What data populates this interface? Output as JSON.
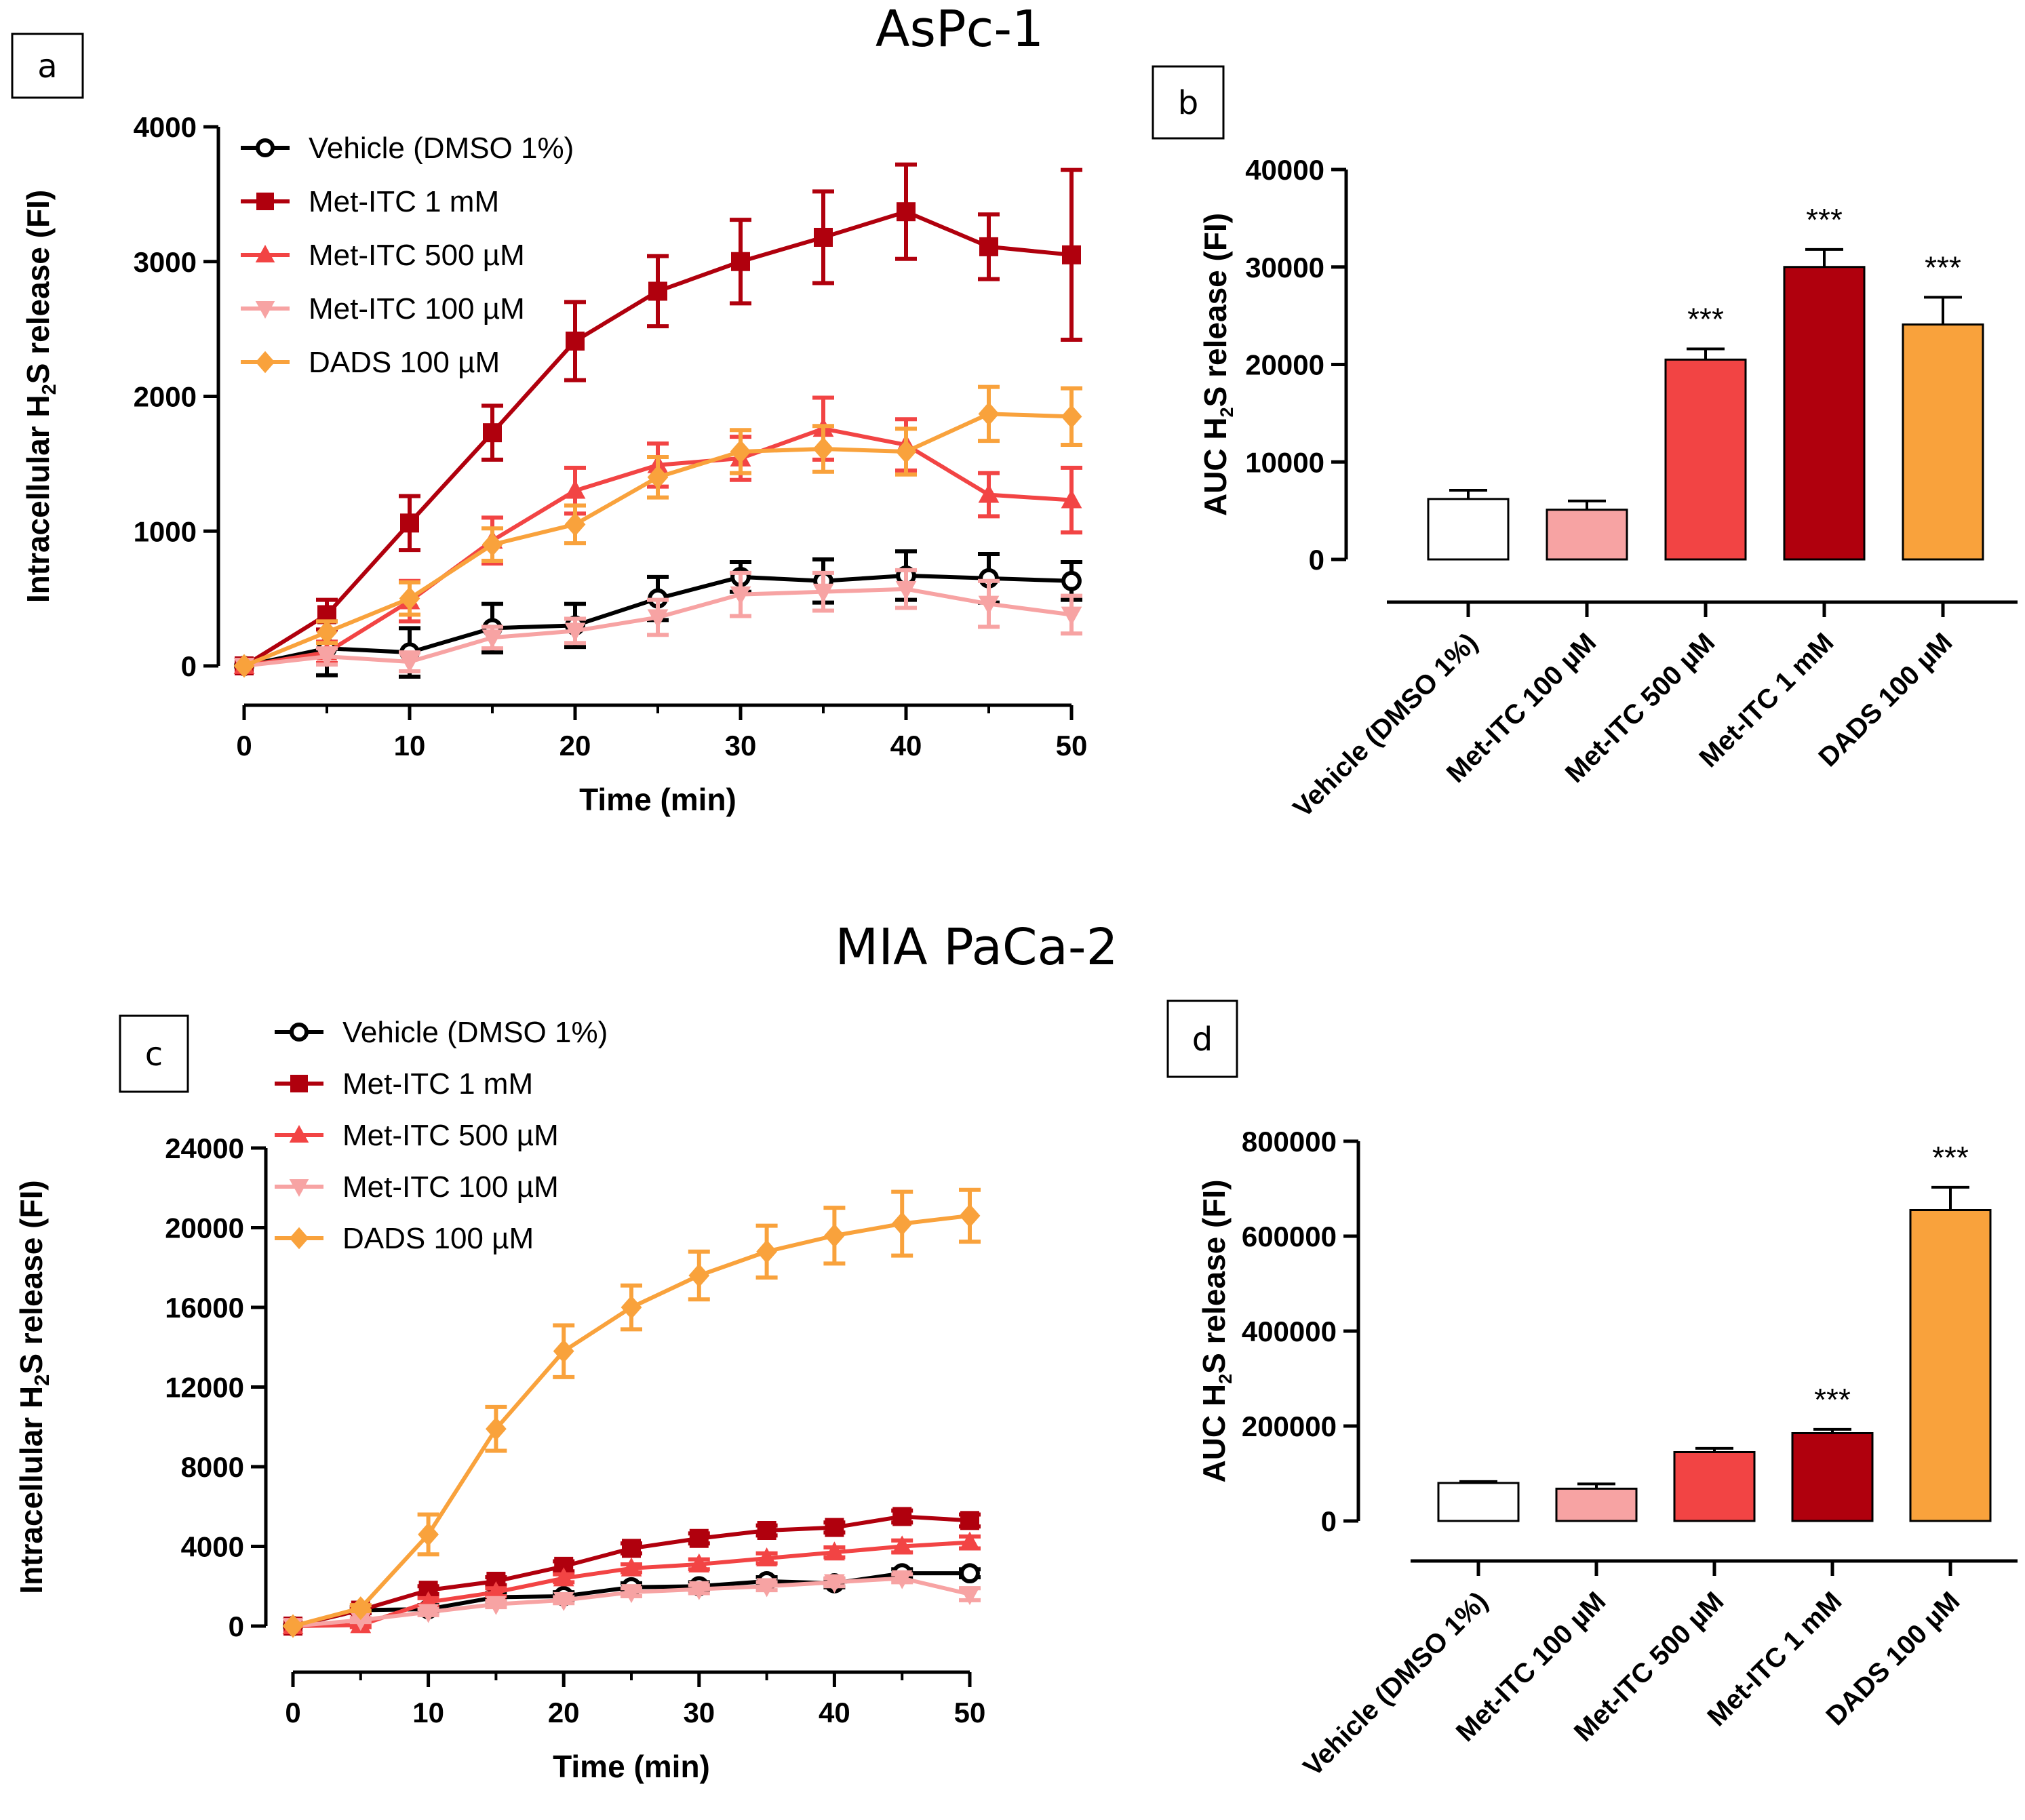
{
  "titles": {
    "top": "AsPc-1",
    "bottom": "MIA PaCa-2"
  },
  "colors": {
    "Vehicle (DMSO 1%)": "#000000",
    "Met-ITC 1 mM": "#b0000d",
    "Met-ITC 500 µM": "#f24444",
    "Met-ITC 100 µM": "#f7a3a3",
    "DADS 100 µM": "#f9a23c"
  },
  "chart_data": [
    {
      "id": "a",
      "label": "a",
      "type": "line",
      "x": [
        0,
        5,
        10,
        15,
        20,
        25,
        30,
        35,
        40,
        45,
        50
      ],
      "xlabel": "Time (min)",
      "ylabel": "Intracellular H2S release (FI)",
      "xlim": [
        0,
        50
      ],
      "ylim": [
        0,
        4000
      ],
      "xticks": [
        0,
        10,
        20,
        30,
        40,
        50
      ],
      "yticks": [
        0,
        1000,
        2000,
        3000,
        4000
      ],
      "series": [
        {
          "name": "Vehicle (DMSO 1%)",
          "marker": "circle",
          "values": [
            0,
            130,
            100,
            280,
            300,
            500,
            660,
            630,
            670,
            650,
            630
          ],
          "errors": [
            0,
            200,
            180,
            180,
            160,
            160,
            110,
            160,
            180,
            180,
            140
          ]
        },
        {
          "name": "Met-ITC 1 mM",
          "marker": "square",
          "values": [
            0,
            380,
            1060,
            1730,
            2410,
            2780,
            3000,
            3180,
            3370,
            3110,
            3050
          ],
          "errors": [
            0,
            110,
            200,
            200,
            290,
            260,
            310,
            340,
            350,
            240,
            630
          ]
        },
        {
          "name": "Met-ITC 500 µM",
          "marker": "triangle",
          "values": [
            0,
            100,
            480,
            930,
            1300,
            1490,
            1540,
            1760,
            1640,
            1270,
            1230
          ],
          "errors": [
            0,
            80,
            150,
            170,
            170,
            160,
            160,
            230,
            190,
            160,
            240
          ]
        },
        {
          "name": "Met-ITC 100 µM",
          "marker": "triangle-down",
          "values": [
            0,
            70,
            30,
            210,
            260,
            360,
            530,
            550,
            570,
            460,
            380
          ],
          "errors": [
            0,
            60,
            70,
            80,
            90,
            130,
            160,
            140,
            140,
            170,
            140
          ]
        },
        {
          "name": "DADS 100 µM",
          "marker": "diamond",
          "values": [
            0,
            250,
            500,
            900,
            1050,
            1400,
            1590,
            1610,
            1590,
            1870,
            1850
          ],
          "errors": [
            0,
            80,
            120,
            120,
            140,
            150,
            160,
            170,
            170,
            200,
            210
          ]
        }
      ]
    },
    {
      "id": "b",
      "label": "b",
      "type": "bar",
      "categories": [
        "Vehicle (DMSO 1%)",
        "Met-ITC 100 µM",
        "Met-ITC 500 µM",
        "Met-ITC 1 mM",
        "DADS 100 µM"
      ],
      "values": [
        6200,
        5100,
        20500,
        30000,
        24100
      ],
      "errors": [
        900,
        900,
        1100,
        1800,
        2800
      ],
      "significance": [
        "",
        "",
        "***",
        "***",
        "***"
      ],
      "ylabel": "AUC H2S release (FI)",
      "ylim": [
        0,
        40000
      ],
      "yticks": [
        0,
        10000,
        20000,
        30000,
        40000
      ]
    },
    {
      "id": "c",
      "label": "c",
      "type": "line",
      "x": [
        0,
        5,
        10,
        15,
        20,
        25,
        30,
        35,
        40,
        45,
        50
      ],
      "xlabel": "Time (min)",
      "ylabel": "Intracellular H2S release (FI)",
      "xlim": [
        0,
        50
      ],
      "ylim": [
        0,
        24000
      ],
      "xticks": [
        0,
        10,
        20,
        30,
        40,
        50
      ],
      "yticks": [
        0,
        4000,
        8000,
        12000,
        16000,
        20000,
        24000
      ],
      "series": [
        {
          "name": "Vehicle (DMSO 1%)",
          "marker": "circle",
          "values": [
            0,
            800,
            850,
            1450,
            1500,
            1950,
            2000,
            2250,
            2150,
            2650,
            2650
          ],
          "errors": [
            0,
            150,
            200,
            200,
            200,
            200,
            200,
            200,
            200,
            200,
            200
          ]
        },
        {
          "name": "Met-ITC 1 mM",
          "marker": "square",
          "values": [
            0,
            800,
            1800,
            2250,
            3000,
            3900,
            4400,
            4800,
            4950,
            5500,
            5300
          ],
          "errors": [
            0,
            150,
            200,
            200,
            250,
            250,
            250,
            250,
            250,
            300,
            300
          ]
        },
        {
          "name": "Met-ITC 500 µM",
          "marker": "triangle",
          "values": [
            0,
            50,
            1200,
            1700,
            2400,
            2900,
            3100,
            3400,
            3700,
            4000,
            4200
          ],
          "errors": [
            0,
            100,
            200,
            200,
            200,
            200,
            250,
            250,
            250,
            300,
            300
          ]
        },
        {
          "name": "Met-ITC 100 µM",
          "marker": "triangle-down",
          "values": [
            0,
            300,
            700,
            1100,
            1300,
            1700,
            1850,
            2000,
            2200,
            2400,
            1600
          ],
          "errors": [
            0,
            100,
            150,
            150,
            150,
            200,
            200,
            200,
            200,
            200,
            300
          ]
        },
        {
          "name": "DADS 100 µM",
          "marker": "diamond",
          "values": [
            0,
            900,
            4600,
            9900,
            13800,
            16000,
            17600,
            18800,
            19600,
            20200,
            20600
          ],
          "errors": [
            0,
            150,
            1000,
            1100,
            1300,
            1100,
            1200,
            1300,
            1400,
            1600,
            1300
          ]
        }
      ]
    },
    {
      "id": "d",
      "label": "d",
      "type": "bar",
      "categories": [
        "Vehicle (DMSO 1%)",
        "Met-ITC 100 µM",
        "Met-ITC 500 µM",
        "Met-ITC 1 mM",
        "DADS 100 µM"
      ],
      "values": [
        80000,
        68000,
        145000,
        185000,
        655000
      ],
      "errors": [
        3000,
        10000,
        8000,
        8000,
        48000
      ],
      "significance": [
        "",
        "",
        "",
        "***",
        "***"
      ],
      "ylabel": "AUC H2S release (FI)",
      "ylim": [
        0,
        800000
      ],
      "yticks": [
        0,
        200000,
        400000,
        600000,
        800000
      ]
    }
  ]
}
